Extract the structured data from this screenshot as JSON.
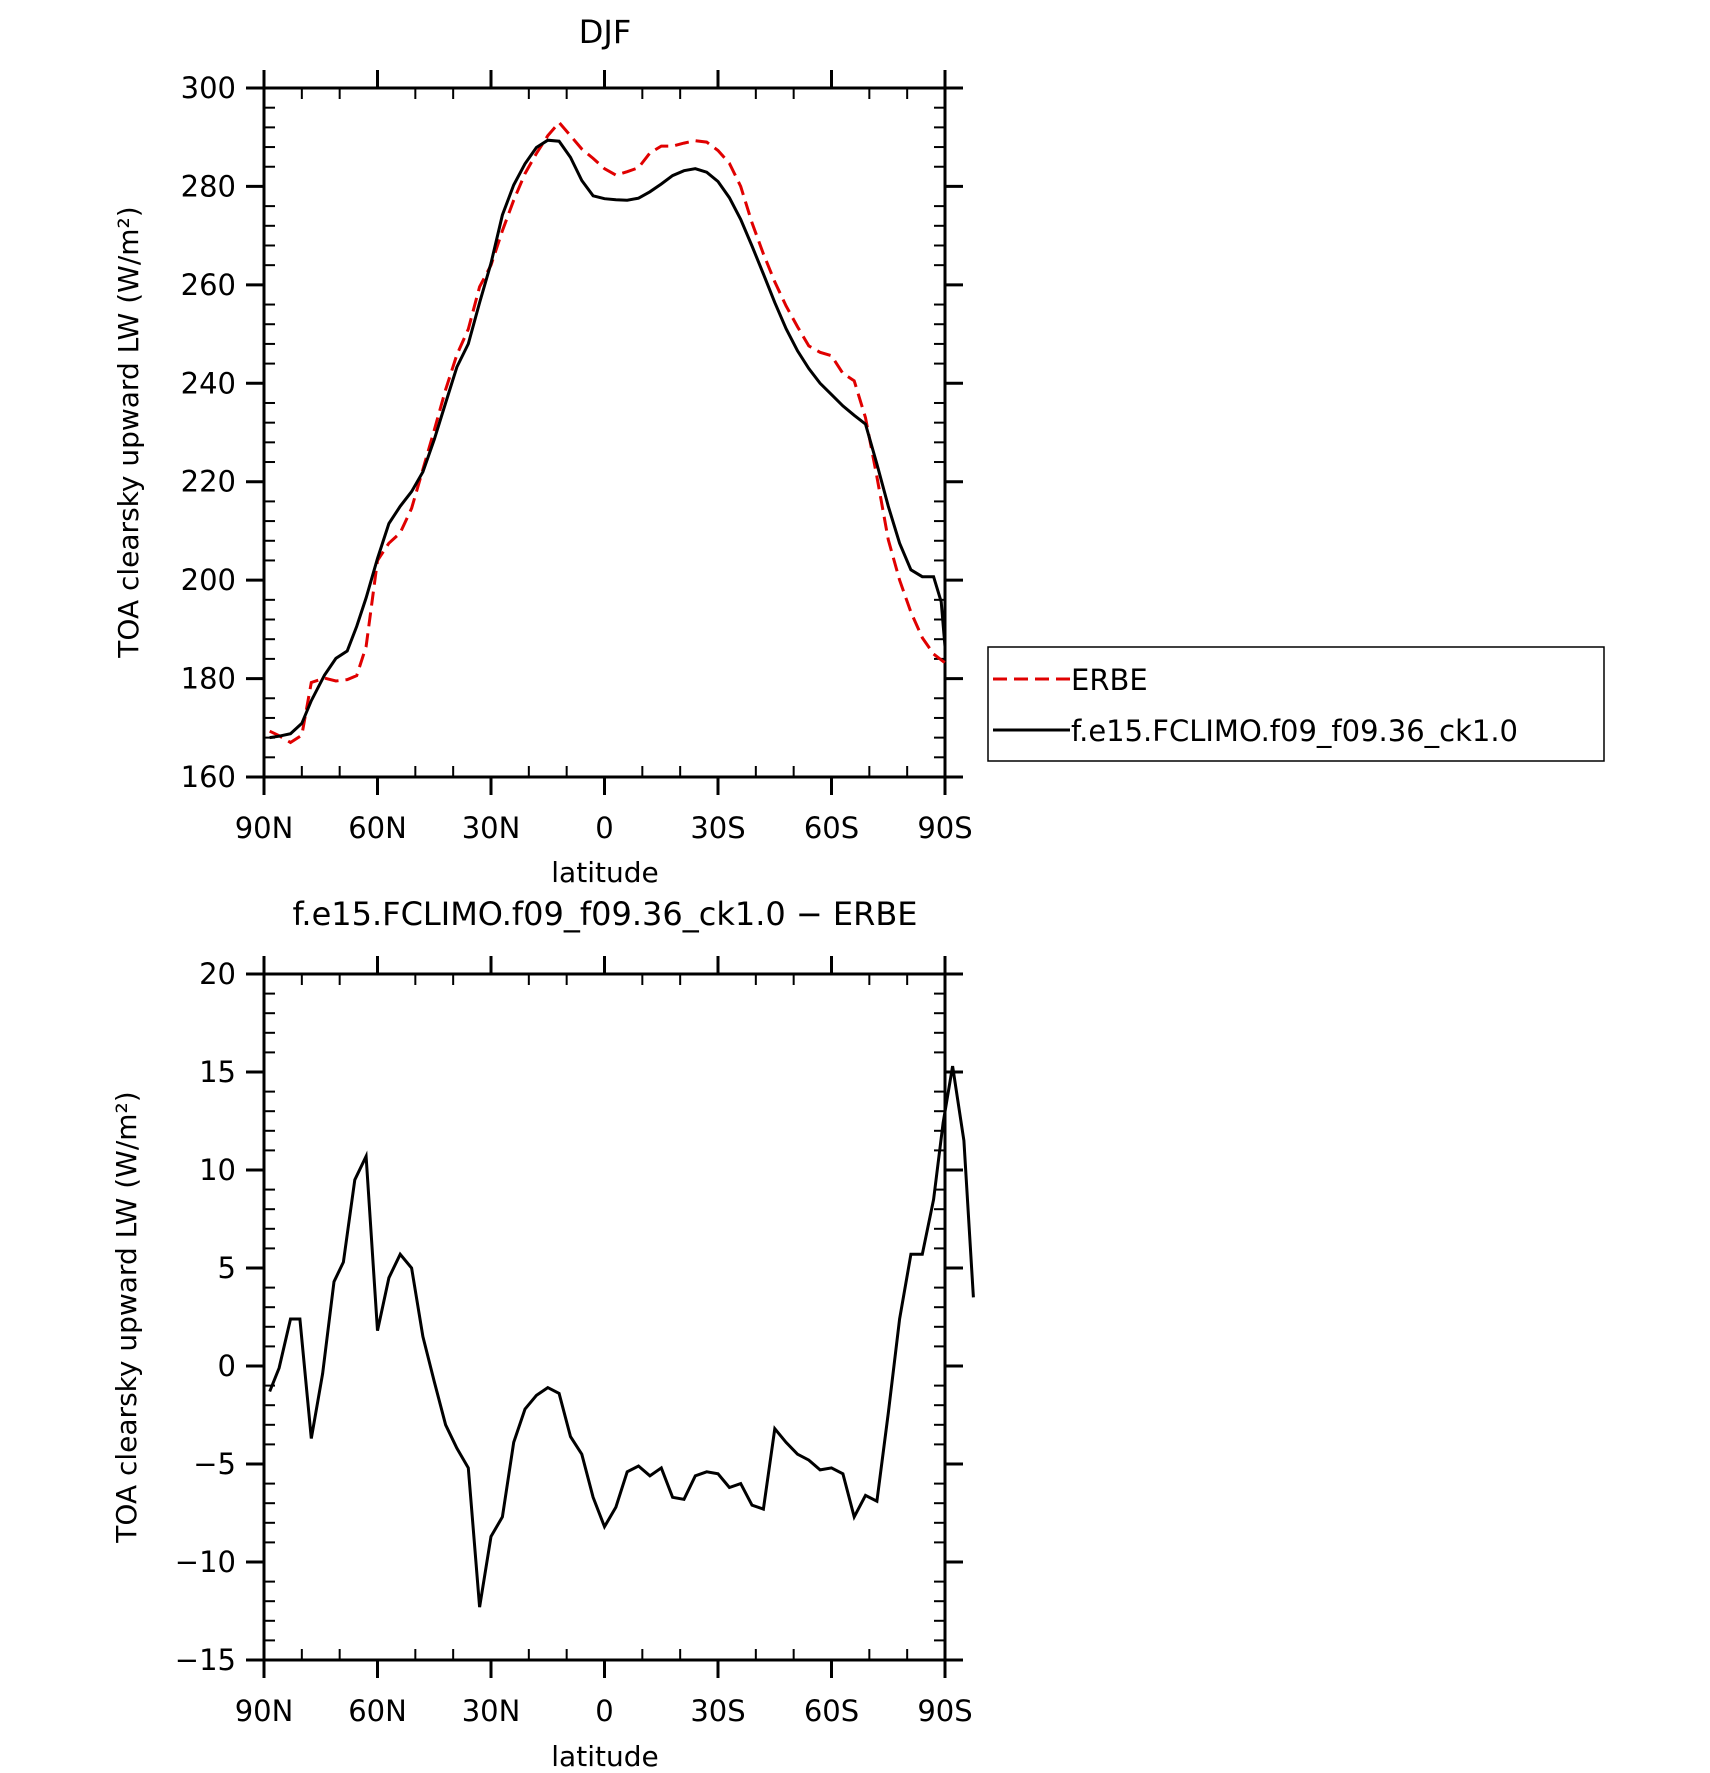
{
  "chart_data": [
    {
      "type": "line",
      "title": "DJF",
      "xlabel": "latitude",
      "ylabel": "TOA clearsky upward LW (W/m²)",
      "xlim": [
        -90,
        90
      ],
      "ylim": [
        160,
        300
      ],
      "x_tick_values": [
        -90,
        -60,
        -30,
        0,
        30,
        60,
        90
      ],
      "x_tick_labels": [
        "90N",
        "60N",
        "30N",
        "0",
        "30S",
        "60S",
        "90S"
      ],
      "y_tick_values": [
        160,
        180,
        200,
        220,
        240,
        260,
        280,
        300
      ],
      "y_tick_labels": [
        "160",
        "180",
        "200",
        "220",
        "240",
        "260",
        "280",
        "300"
      ],
      "legend_position": "right",
      "series": [
        {
          "name": "ERBE",
          "color": "#e00000",
          "dash": true,
          "points": [
            [
              -88.5,
              169.3
            ],
            [
              -86,
              168.4
            ],
            [
              -83,
              167
            ],
            [
              -80,
              168.5
            ],
            [
              -77.5,
              179.2
            ],
            [
              -74,
              180.1
            ],
            [
              -71,
              179.5
            ],
            [
              -68,
              179.8
            ],
            [
              -65.5,
              180.6
            ],
            [
              -63,
              186.5
            ],
            [
              -60,
              204
            ],
            [
              -57,
              207.5
            ],
            [
              -54,
              209.6
            ],
            [
              -51,
              214.6
            ],
            [
              -48,
              222.5
            ],
            [
              -45,
              230.5
            ],
            [
              -42,
              238.7
            ],
            [
              -39,
              245.8
            ],
            [
              -36,
              251
            ],
            [
              -33,
              259.6
            ],
            [
              -30,
              264
            ],
            [
              -27,
              271
            ],
            [
              -24,
              277.2
            ],
            [
              -21,
              282.6
            ],
            [
              -18,
              286.7
            ],
            [
              -15,
              290.3
            ],
            [
              -12,
              293
            ],
            [
              -9,
              290.3
            ],
            [
              -6,
              287.6
            ],
            [
              -3,
              285.7
            ],
            [
              0,
              283.6
            ],
            [
              3,
              282.3
            ],
            [
              6,
              283
            ],
            [
              9,
              283.8
            ],
            [
              12,
              286.8
            ],
            [
              15,
              288.2
            ],
            [
              18,
              288.2
            ],
            [
              21,
              288.8
            ],
            [
              24,
              289.3
            ],
            [
              27,
              289
            ],
            [
              30,
              287.3
            ],
            [
              33,
              284.7
            ],
            [
              36,
              280
            ],
            [
              39,
              272.6
            ],
            [
              42,
              266.3
            ],
            [
              45,
              260.6
            ],
            [
              48,
              255.7
            ],
            [
              51,
              251.5
            ],
            [
              54,
              247.6
            ],
            [
              57,
              246.3
            ],
            [
              60,
              245.6
            ],
            [
              63,
              242
            ],
            [
              66,
              240.5
            ],
            [
              69,
              233
            ],
            [
              72,
              221
            ],
            [
              75,
              208.2
            ],
            [
              78,
              200
            ],
            [
              81,
              193.5
            ],
            [
              84,
              188.3
            ],
            [
              87,
              185
            ],
            [
              90,
              183.2
            ]
          ]
        },
        {
          "name": "f.e15.FCLIMO.f09_f09.36_ck1.0",
          "color": "#000000",
          "dash": false,
          "points": [
            [
              -88.5,
              168
            ],
            [
              -86,
              168.3
            ],
            [
              -83,
              168.8
            ],
            [
              -80,
              170.9
            ],
            [
              -77.5,
              175.5
            ],
            [
              -74,
              180.7
            ],
            [
              -71,
              184.1
            ],
            [
              -68,
              185.6
            ],
            [
              -65.5,
              190.6
            ],
            [
              -63,
              196.4
            ],
            [
              -60,
              204.4
            ],
            [
              -57,
              211.5
            ],
            [
              -54,
              215
            ],
            [
              -51,
              218
            ],
            [
              -48,
              222
            ],
            [
              -45,
              228.6
            ],
            [
              -42,
              236
            ],
            [
              -39,
              243.3
            ],
            [
              -36,
              248
            ],
            [
              -33,
              256.4
            ],
            [
              -30,
              264.4
            ],
            [
              -27,
              274.2
            ],
            [
              -24,
              280.3
            ],
            [
              -21,
              284.6
            ],
            [
              -18,
              287.9
            ],
            [
              -15,
              289.4
            ],
            [
              -12,
              289.2
            ],
            [
              -9,
              285.9
            ],
            [
              -6,
              281.2
            ],
            [
              -3,
              278.1
            ],
            [
              0,
              277.5
            ],
            [
              3,
              277.3
            ],
            [
              6,
              277.2
            ],
            [
              9,
              277.6
            ],
            [
              12,
              278.9
            ],
            [
              15,
              280.5
            ],
            [
              18,
              282.2
            ],
            [
              21,
              283.2
            ],
            [
              24,
              283.6
            ],
            [
              27,
              282.9
            ],
            [
              30,
              281
            ],
            [
              33,
              277.7
            ],
            [
              36,
              273.3
            ],
            [
              39,
              267.9
            ],
            [
              42,
              262.2
            ],
            [
              45,
              256.4
            ],
            [
              48,
              251.1
            ],
            [
              51,
              246.6
            ],
            [
              54,
              243
            ],
            [
              57,
              240
            ],
            [
              60,
              237.7
            ],
            [
              63,
              235.4
            ],
            [
              66,
              233.5
            ],
            [
              69,
              231.7
            ],
            [
              72,
              223.6
            ],
            [
              75,
              215
            ],
            [
              78,
              207.5
            ],
            [
              81,
              202.1
            ],
            [
              84,
              200.7
            ],
            [
              87,
              200.7
            ],
            [
              89,
              195.6
            ],
            [
              90,
              186.5
            ]
          ]
        }
      ]
    },
    {
      "type": "line",
      "title": "f.e15.FCLIMO.f09_f09.36_ck1.0 − ERBE",
      "xlabel": "latitude",
      "ylabel": "TOA clearsky upward LW (W/m²)",
      "xlim": [
        -90,
        90
      ],
      "ylim": [
        -15,
        20
      ],
      "x_tick_values": [
        -90,
        -60,
        -30,
        0,
        30,
        60,
        90
      ],
      "x_tick_labels": [
        "90N",
        "60N",
        "30N",
        "0",
        "30S",
        "60S",
        "90S"
      ],
      "y_tick_values": [
        -15,
        -10,
        -5,
        0,
        5,
        10,
        15,
        20
      ],
      "y_tick_labels": [
        "−15",
        "−10",
        "−5",
        "0",
        "5",
        "10",
        "15",
        "20"
      ],
      "series": [
        {
          "color": "#000000",
          "dash": false,
          "points": [
            [
              -88.5,
              -1.3
            ],
            [
              -86,
              -0.1
            ],
            [
              -83,
              2.4
            ],
            [
              -80.5,
              2.4
            ],
            [
              -77.5,
              -3.7
            ],
            [
              -74.5,
              -0.4
            ],
            [
              -71.5,
              4.3
            ],
            [
              -69,
              5.3
            ],
            [
              -66,
              9.5
            ],
            [
              -63,
              10.7
            ],
            [
              -60,
              1.8
            ],
            [
              -57,
              4.5
            ],
            [
              -54,
              5.7
            ],
            [
              -51,
              5
            ],
            [
              -48,
              1.5
            ],
            [
              -45,
              -0.8
            ],
            [
              -42,
              -3
            ],
            [
              -39,
              -4.2
            ],
            [
              -36,
              -5.2
            ],
            [
              -33,
              -12.3
            ],
            [
              -30,
              -8.7
            ],
            [
              -27,
              -7.7
            ],
            [
              -24,
              -3.9
            ],
            [
              -21,
              -2.2
            ],
            [
              -18,
              -1.5
            ],
            [
              -15,
              -1.1
            ],
            [
              -12,
              -1.4
            ],
            [
              -9,
              -3.6
            ],
            [
              -6,
              -4.5
            ],
            [
              -3,
              -6.7
            ],
            [
              0,
              -8.2
            ],
            [
              3,
              -7.2
            ],
            [
              6,
              -5.4
            ],
            [
              9,
              -5.1
            ],
            [
              12,
              -5.6
            ],
            [
              15,
              -5.2
            ],
            [
              18,
              -6.7
            ],
            [
              21,
              -6.8
            ],
            [
              24,
              -5.6
            ],
            [
              27,
              -5.4
            ],
            [
              30,
              -5.5
            ],
            [
              33,
              -6.2
            ],
            [
              36,
              -6
            ],
            [
              39,
              -7.1
            ],
            [
              42,
              -7.3
            ],
            [
              45,
              -3.2
            ],
            [
              48,
              -3.9
            ],
            [
              51,
              -4.5
            ],
            [
              54,
              -4.8
            ],
            [
              57,
              -5.3
            ],
            [
              60,
              -5.2
            ],
            [
              63,
              -5.5
            ],
            [
              66,
              -7.7
            ],
            [
              69,
              -6.6
            ],
            [
              72,
              -6.9
            ],
            [
              75,
              -2.4
            ],
            [
              78,
              2.4
            ],
            [
              81,
              5.7
            ],
            [
              84,
              5.7
            ],
            [
              87,
              8.5
            ],
            [
              89.5,
              12.4
            ],
            [
              92,
              15.3
            ],
            [
              95,
              11.5
            ],
            [
              97.5,
              3.5
            ]
          ]
        }
      ]
    }
  ]
}
